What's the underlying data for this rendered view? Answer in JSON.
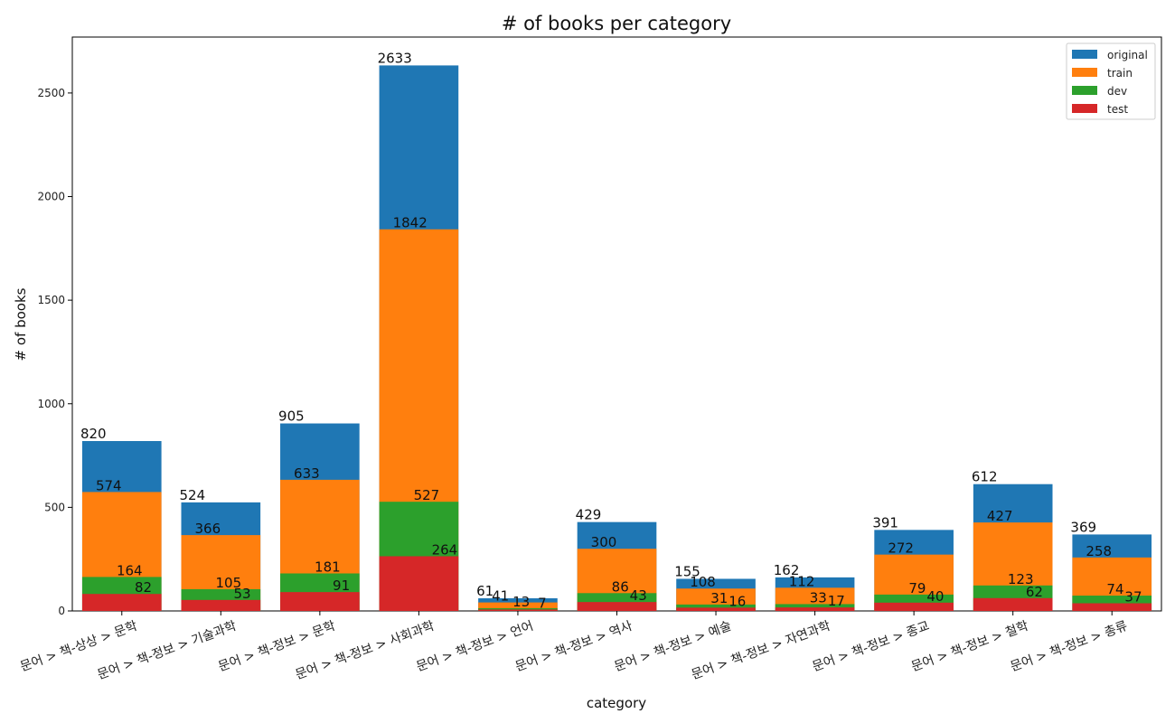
{
  "chart_data": {
    "type": "bar",
    "stacked": "overlay",
    "title": "# of books per category",
    "xlabel": "category",
    "ylabel": "# of books",
    "ylim": [
      0,
      2770
    ],
    "yticks": [
      0,
      500,
      1000,
      1500,
      2000,
      2500
    ],
    "ytick_labels": [
      "0",
      "500",
      "1000",
      "1500",
      "2000",
      "2500"
    ],
    "legend_position": "top-right",
    "categories": [
      "문어 > 책-상상 > 문학",
      "문어 > 책-정보 > 기술과학",
      "문어 > 책-정보 > 문학",
      "문어 > 책-정보 > 사회과학",
      "문어 > 책-정보 > 언어",
      "문어 > 책-정보 > 역사",
      "문어 > 책-정보 > 예술",
      "문어 > 책-정보 > 자연과학",
      "문어 > 책-정보 > 종교",
      "문어 > 책-정보 > 철학",
      "문어 > 책-정보 > 총류"
    ],
    "series": [
      {
        "name": "original",
        "color": "#1f77b4",
        "values": [
          820,
          524,
          905,
          2633,
          61,
          429,
          155,
          162,
          391,
          612,
          369
        ]
      },
      {
        "name": "train",
        "color": "#ff7f0e",
        "values": [
          574,
          366,
          633,
          1842,
          41,
          300,
          108,
          112,
          272,
          427,
          258
        ]
      },
      {
        "name": "dev",
        "color": "#2ca02c",
        "values": [
          164,
          105,
          181,
          527,
          13,
          86,
          31,
          33,
          79,
          123,
          74
        ]
      },
      {
        "name": "test",
        "color": "#d62728",
        "values": [
          82,
          53,
          91,
          264,
          7,
          43,
          16,
          17,
          40,
          62,
          37
        ]
      }
    ]
  }
}
